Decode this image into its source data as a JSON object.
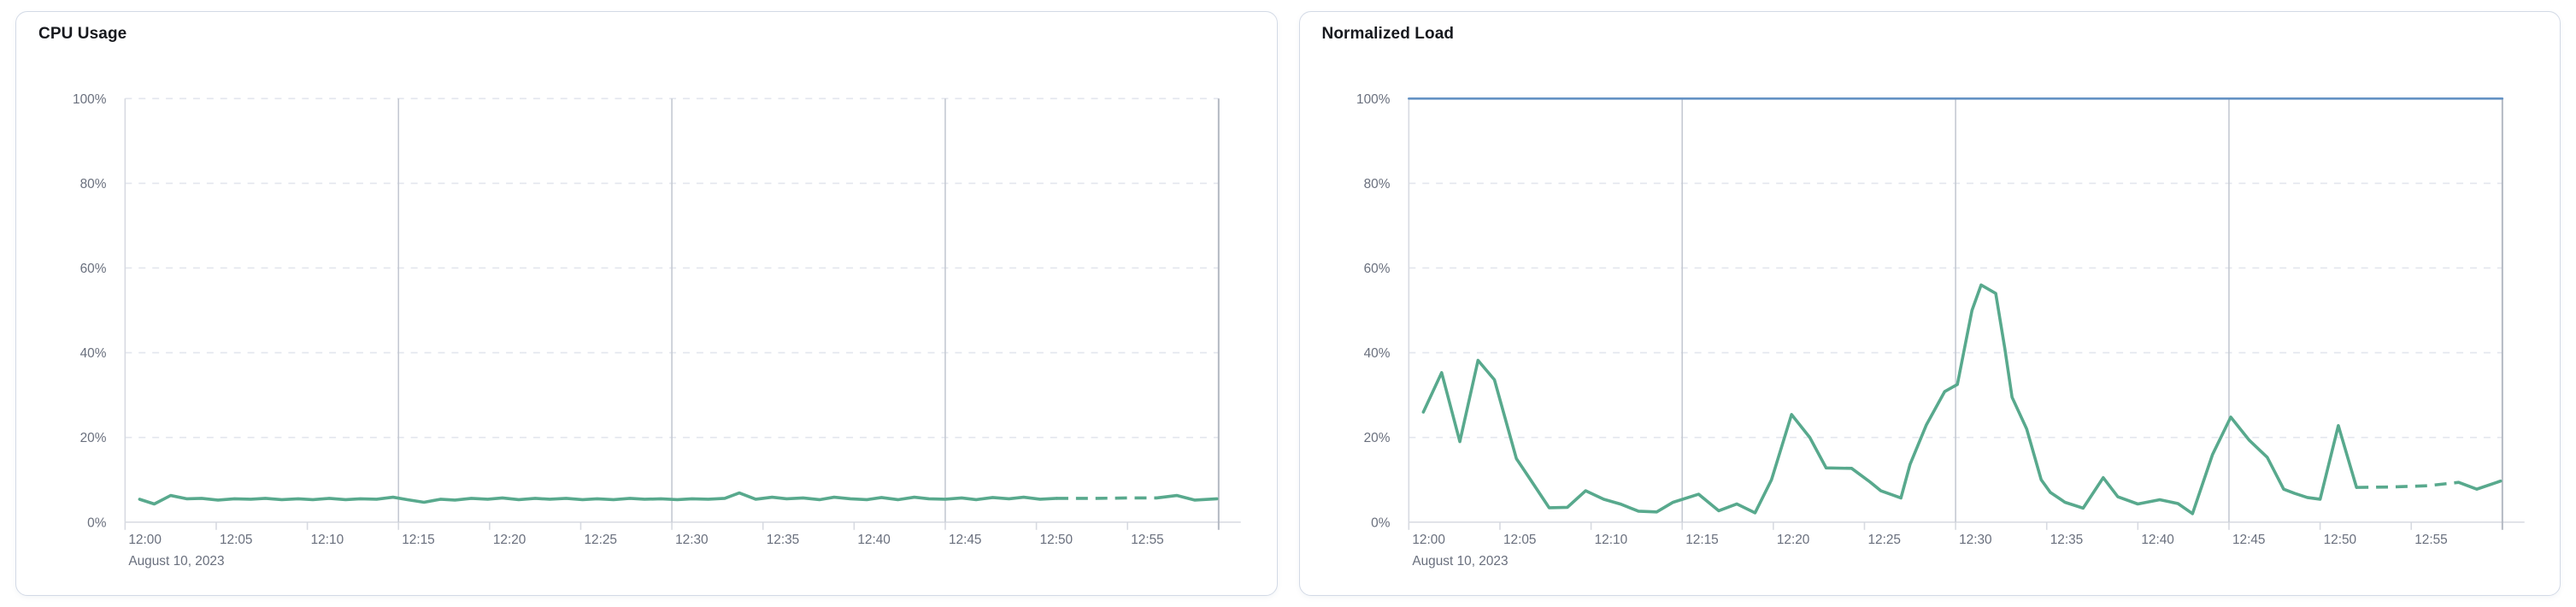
{
  "page": {
    "background": "#ffffff"
  },
  "colors": {
    "series_green": "#58a98d",
    "limit_blue": "#6492c4",
    "grid_dashed": "#e3e6ee",
    "grid_major_vertical": "#c4c9d2",
    "chart_end_line": "#b3b8c2",
    "axis_line": "#d7dae1",
    "tick_text": "#696f7d",
    "title_text": "#17191e",
    "panel_border": "#d3dae6",
    "panel_background": "#ffffff"
  },
  "panels": [
    {
      "title": "CPU Usage",
      "chart_data": {
        "type": "line",
        "title": "CPU Usage",
        "legend": "none",
        "x_axis": {
          "kind": "time",
          "date_label": "August 10, 2023",
          "tick_labels": [
            "12:00",
            "12:05",
            "12:10",
            "12:15",
            "12:20",
            "12:25",
            "12:30",
            "12:35",
            "12:40",
            "12:45",
            "12:50",
            "12:55"
          ],
          "tick_interval_minutes": 5,
          "domain_minutes": [
            0,
            60
          ]
        },
        "y_axis": {
          "tick_labels": [
            "0%",
            "20%",
            "40%",
            "60%",
            "80%",
            "100%"
          ],
          "ylim": [
            0,
            100
          ],
          "format": "percent"
        },
        "grid": {
          "horizontal_style": "dashed",
          "major_vertical_minutes": [
            15,
            30,
            45
          ],
          "end_line_minute": 60
        },
        "series": [
          {
            "name": "cpu-usage",
            "color_key": "series_green",
            "stroke_width": 3.6,
            "dashed_range_minutes": [
              51.1,
              56.6
            ],
            "points_minute_percent": [
              [
                0.8,
                5.4
              ],
              [
                1.6,
                4.3
              ],
              [
                2.5,
                6.3
              ],
              [
                3.4,
                5.5
              ],
              [
                4.2,
                5.6
              ],
              [
                5.1,
                5.2
              ],
              [
                6,
                5.5
              ],
              [
                6.9,
                5.4
              ],
              [
                7.7,
                5.6
              ],
              [
                8.6,
                5.3
              ],
              [
                9.5,
                5.5
              ],
              [
                10.3,
                5.3
              ],
              [
                11.2,
                5.6
              ],
              [
                12.1,
                5.3
              ],
              [
                12.9,
                5.5
              ],
              [
                13.8,
                5.4
              ],
              [
                14.7,
                5.9
              ],
              [
                15.5,
                5.3
              ],
              [
                16.4,
                4.7
              ],
              [
                17.3,
                5.4
              ],
              [
                18.1,
                5.2
              ],
              [
                19,
                5.6
              ],
              [
                19.9,
                5.4
              ],
              [
                20.7,
                5.7
              ],
              [
                21.6,
                5.3
              ],
              [
                22.5,
                5.6
              ],
              [
                23.3,
                5.4
              ],
              [
                24.2,
                5.6
              ],
              [
                25.1,
                5.3
              ],
              [
                25.9,
                5.5
              ],
              [
                26.8,
                5.3
              ],
              [
                27.7,
                5.6
              ],
              [
                28.5,
                5.4
              ],
              [
                29.4,
                5.5
              ],
              [
                30.3,
                5.3
              ],
              [
                31.1,
                5.5
              ],
              [
                32,
                5.4
              ],
              [
                32.9,
                5.6
              ],
              [
                33.7,
                6.9
              ],
              [
                34.6,
                5.4
              ],
              [
                35.5,
                5.9
              ],
              [
                36.3,
                5.5
              ],
              [
                37.2,
                5.7
              ],
              [
                38.1,
                5.3
              ],
              [
                38.9,
                5.9
              ],
              [
                39.8,
                5.5
              ],
              [
                40.7,
                5.3
              ],
              [
                41.5,
                5.8
              ],
              [
                42.4,
                5.3
              ],
              [
                43.3,
                5.9
              ],
              [
                44.1,
                5.5
              ],
              [
                45,
                5.4
              ],
              [
                45.9,
                5.7
              ],
              [
                46.7,
                5.3
              ],
              [
                47.6,
                5.8
              ],
              [
                48.5,
                5.5
              ],
              [
                49.3,
                5.9
              ],
              [
                50.2,
                5.4
              ],
              [
                51.1,
                5.6
              ],
              [
                53,
                5.6
              ],
              [
                55,
                5.7
              ],
              [
                56.6,
                5.7
              ],
              [
                57.7,
                6.3
              ],
              [
                58.7,
                5.2
              ],
              [
                59.9,
                5.5
              ]
            ]
          }
        ]
      }
    },
    {
      "title": "Normalized Load",
      "chart_data": {
        "type": "line",
        "title": "Normalized Load",
        "legend": "none",
        "x_axis": {
          "kind": "time",
          "date_label": "August 10, 2023",
          "tick_labels": [
            "12:00",
            "12:05",
            "12:10",
            "12:15",
            "12:20",
            "12:25",
            "12:30",
            "12:35",
            "12:40",
            "12:45",
            "12:50",
            "12:55"
          ],
          "tick_interval_minutes": 5,
          "domain_minutes": [
            0,
            60
          ]
        },
        "y_axis": {
          "tick_labels": [
            "0%",
            "20%",
            "40%",
            "60%",
            "80%",
            "100%"
          ],
          "ylim": [
            0,
            100
          ],
          "format": "percent"
        },
        "grid": {
          "horizontal_style": "dashed",
          "major_vertical_minutes": [
            15,
            30,
            45
          ],
          "end_line_minute": 60
        },
        "series": [
          {
            "name": "normalized-load",
            "color_key": "series_green",
            "stroke_width": 3.6,
            "dashed_range_minutes": [
              52,
              57.6
            ],
            "points_minute_percent": [
              [
                0.8,
                26
              ],
              [
                1.8,
                35.3
              ],
              [
                2.8,
                19
              ],
              [
                3.8,
                38.2
              ],
              [
                4.7,
                33.6
              ],
              [
                5.9,
                15
              ],
              [
                6.6,
                10.5
              ],
              [
                7.7,
                3.4
              ],
              [
                8.7,
                3.5
              ],
              [
                9.7,
                7.4
              ],
              [
                10.7,
                5.4
              ],
              [
                11.6,
                4.3
              ],
              [
                12.6,
                2.6
              ],
              [
                13.6,
                2.4
              ],
              [
                14.5,
                4.7
              ],
              [
                15.9,
                6.6
              ],
              [
                17,
                2.7
              ],
              [
                18,
                4.3
              ],
              [
                19,
                2.2
              ],
              [
                19.9,
                10
              ],
              [
                21,
                25.4
              ],
              [
                22,
                20
              ],
              [
                22.9,
                12.8
              ],
              [
                24.3,
                12.7
              ],
              [
                25.3,
                9.5
              ],
              [
                25.9,
                7.4
              ],
              [
                27,
                5.7
              ],
              [
                27.5,
                13.6
              ],
              [
                28.4,
                23
              ],
              [
                29.4,
                30.8
              ],
              [
                30.1,
                32.5
              ],
              [
                30.9,
                50
              ],
              [
                31.4,
                56
              ],
              [
                32.2,
                54
              ],
              [
                32.7,
                41
              ],
              [
                33.1,
                29.5
              ],
              [
                33.9,
                22
              ],
              [
                34.7,
                10
              ],
              [
                35.2,
                7
              ],
              [
                36,
                4.7
              ],
              [
                37,
                3.3
              ],
              [
                38.1,
                10.5
              ],
              [
                38.9,
                6
              ],
              [
                40,
                4.3
              ],
              [
                41.2,
                5.3
              ],
              [
                42.2,
                4.4
              ],
              [
                43,
                2
              ],
              [
                44.1,
                16
              ],
              [
                45.1,
                24.8
              ],
              [
                46.1,
                19.4
              ],
              [
                47.1,
                15.3
              ],
              [
                48,
                7.8
              ],
              [
                48.6,
                6.8
              ],
              [
                49.3,
                5.8
              ],
              [
                50,
                5.4
              ],
              [
                51,
                22.8
              ],
              [
                52,
                8.2
              ],
              [
                53.9,
                8.3
              ],
              [
                55.9,
                8.6
              ],
              [
                57.6,
                9.4
              ],
              [
                58.6,
                7.8
              ],
              [
                59.9,
                9.7
              ]
            ]
          },
          {
            "name": "limit-100",
            "color_key": "limit_blue",
            "stroke_width": 2.6,
            "dashed_range_minutes": null,
            "points_minute_percent": [
              [
                0,
                100
              ],
              [
                60,
                100
              ]
            ]
          }
        ]
      }
    }
  ]
}
